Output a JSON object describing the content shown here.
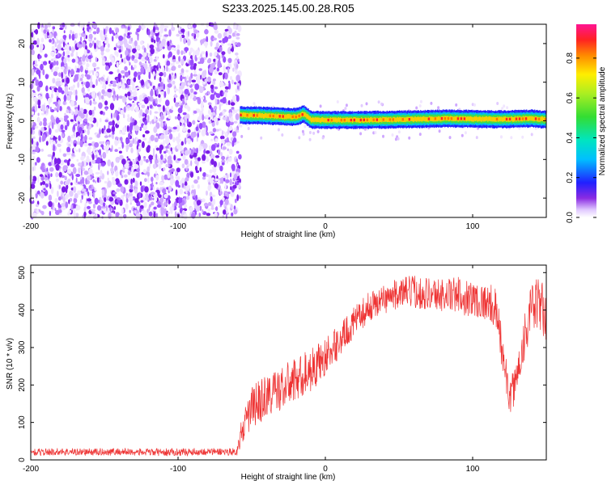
{
  "figure": {
    "title": "S233.2025.145.00.28.R05"
  },
  "chart_data": [
    {
      "type": "heatmap",
      "xlabel": "Height of straight line (km)",
      "ylabel": "Frequency (Hz)",
      "xlim": [
        -200,
        150
      ],
      "ylim": [
        -25,
        25
      ],
      "x_ticks": [
        -200,
        -100,
        0,
        100
      ],
      "y_ticks": [
        -20,
        -10,
        0,
        10,
        20
      ],
      "colorbar": {
        "label": "Normalized spectral amplitude",
        "range": [
          0.0,
          0.97
        ],
        "ticks": [
          "0.0",
          "0.2",
          "0.4",
          "0.6",
          "0.8"
        ],
        "colormap": "rainbow (white-purple-blue-cyan-green-yellow-orange-red-magenta)"
      },
      "regions": [
        {
          "x_range": [
            -200,
            -58
          ],
          "description_value": "broadband noise across full frequency range, low amplitude (purple speckle)"
        },
        {
          "x_range": [
            -58,
            150
          ],
          "description_value": "narrow signal line near 0 Hz, high amplitude (red core)"
        }
      ],
      "signal_line": {
        "x": [
          -58,
          -40,
          -20,
          -15,
          -10,
          0,
          20,
          40,
          60,
          80,
          100,
          120,
          140,
          150
        ],
        "frequency_hz": [
          1.5,
          1.3,
          1.0,
          1.8,
          0.3,
          0.2,
          0.2,
          0.3,
          0.4,
          0.6,
          0.5,
          0.4,
          0.6,
          0.3
        ],
        "peak_amplitude": 0.95
      }
    },
    {
      "type": "line",
      "xlabel": "Height of straight line (km)",
      "ylabel": "SNR (10 * v/v)",
      "xlim": [
        -200,
        150
      ],
      "ylim": [
        0,
        520
      ],
      "x_ticks": [
        -200,
        -100,
        0,
        100
      ],
      "y_ticks": [
        0,
        100,
        200,
        300,
        400,
        500
      ],
      "color": "#ee3333",
      "series": [
        {
          "x": [
            -200,
            -180,
            -160,
            -140,
            -120,
            -100,
            -80,
            -60,
            -58,
            -50,
            -40,
            -30,
            -20,
            -10,
            0,
            10,
            20,
            30,
            40,
            50,
            60,
            70,
            80,
            90,
            100,
            110,
            115,
            120,
            125,
            130,
            135,
            140,
            145,
            150
          ],
          "y": [
            20,
            22,
            21,
            22,
            20,
            21,
            22,
            22,
            60,
            140,
            170,
            190,
            215,
            240,
            275,
            320,
            370,
            410,
            430,
            445,
            450,
            445,
            440,
            440,
            430,
            420,
            410,
            300,
            160,
            220,
            330,
            400,
            420,
            380
          ],
          "noise_amplitude": [
            10,
            10,
            10,
            10,
            10,
            10,
            10,
            10,
            30,
            60,
            60,
            60,
            60,
            60,
            50,
            45,
            40,
            40,
            40,
            40,
            45,
            45,
            45,
            50,
            50,
            50,
            55,
            60,
            40,
            60,
            70,
            70,
            70,
            80
          ]
        }
      ]
    }
  ],
  "colors": {
    "snr_line": "#ee3333",
    "frame": "#000000"
  }
}
